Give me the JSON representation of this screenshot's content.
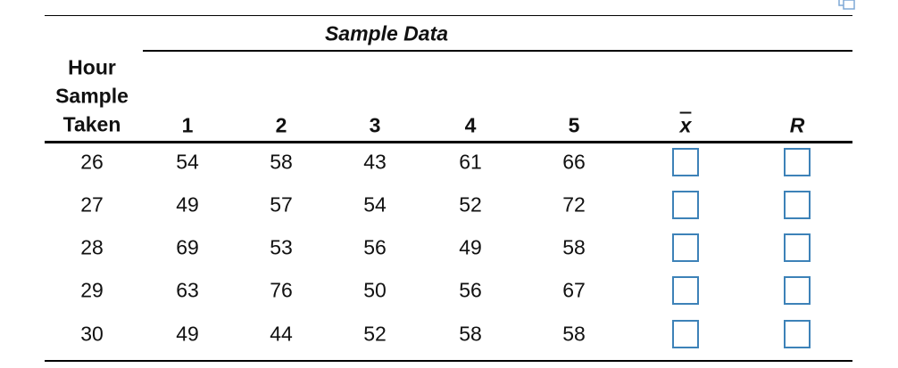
{
  "header": {
    "title": "Sample Data"
  },
  "table": {
    "row_header": [
      "Hour",
      "Sample",
      "Taken"
    ],
    "columns": [
      "1",
      "2",
      "3",
      "4",
      "5",
      "x",
      "R"
    ],
    "rows": [
      [
        26,
        54,
        58,
        43,
        61,
        66
      ],
      [
        27,
        49,
        57,
        54,
        52,
        72
      ],
      [
        28,
        69,
        53,
        56,
        49,
        58
      ],
      [
        29,
        63,
        76,
        50,
        56,
        67
      ],
      [
        30,
        49,
        44,
        52,
        58,
        58
      ]
    ]
  }
}
